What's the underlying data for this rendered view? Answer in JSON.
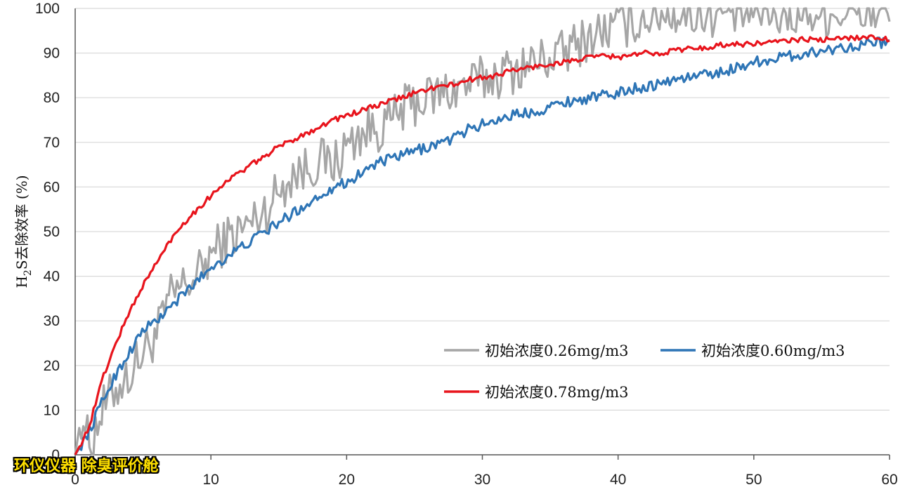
{
  "chart_data": {
    "type": "line",
    "title": "",
    "xlabel": "",
    "ylabel_main": "H",
    "ylabel_sub": "2",
    "ylabel_rest": "S去除效率 (%)",
    "xlim": [
      0,
      60
    ],
    "ylim": [
      0,
      100
    ],
    "x_ticks": [
      "0",
      "10",
      "20",
      "30",
      "40",
      "50",
      "60"
    ],
    "y_ticks": [
      "0",
      "10",
      "20",
      "30",
      "40",
      "50",
      "60",
      "70",
      "80",
      "90",
      "100"
    ],
    "grid": "horizontal",
    "legend_placement": "bottom-right",
    "series": [
      {
        "name": "初始浓度0.26mg/m3",
        "color": "#a6a6a6",
        "x": [
          0,
          0.5,
          1,
          2,
          3,
          4,
          5,
          6,
          7,
          8,
          9,
          10,
          11,
          12,
          13,
          14,
          15,
          16,
          17,
          18,
          19,
          20,
          21,
          22,
          23,
          24,
          25,
          26,
          27,
          28,
          29,
          30,
          31,
          32,
          33,
          34,
          35,
          36,
          37,
          38,
          39,
          40,
          41,
          42,
          43,
          44,
          45,
          46,
          47,
          48,
          49,
          50,
          51,
          52,
          53,
          54,
          55,
          56,
          57,
          58,
          59,
          60
        ],
        "y": [
          0,
          10,
          2,
          10,
          15,
          18,
          23,
          27,
          35,
          38,
          40,
          45,
          48,
          50,
          52,
          55,
          59,
          63,
          64,
          66,
          65,
          69,
          72,
          73,
          74,
          77,
          79,
          80,
          81,
          82,
          83,
          84,
          85,
          86,
          87,
          88,
          89,
          90,
          92,
          94,
          95,
          96,
          97,
          98,
          99,
          99,
          99,
          99,
          99,
          99,
          99,
          99,
          99,
          99,
          99,
          99,
          99,
          99,
          99,
          99,
          99,
          99
        ]
      },
      {
        "name": "初始浓度0.60mg/m3",
        "color": "#2e75b6",
        "x": [
          0,
          1,
          2,
          3,
          4,
          5,
          6,
          7,
          8,
          9,
          10,
          11,
          12,
          13,
          14,
          15,
          16,
          17,
          18,
          19,
          20,
          21,
          22,
          23,
          24,
          25,
          26,
          27,
          28,
          29,
          30,
          31,
          32,
          33,
          34,
          35,
          36,
          37,
          38,
          39,
          40,
          41,
          42,
          43,
          44,
          45,
          46,
          47,
          48,
          49,
          50,
          51,
          52,
          53,
          54,
          55,
          56,
          57,
          58,
          59,
          60
        ],
        "y": [
          0,
          5,
          12,
          18,
          23,
          28,
          30,
          33,
          36,
          39,
          42,
          44,
          46,
          48,
          50,
          52,
          54,
          56,
          58,
          60,
          61,
          63,
          65,
          66,
          67,
          68,
          69,
          70,
          71,
          73,
          74,
          75,
          76,
          76.5,
          77,
          78,
          79,
          79.5,
          80,
          80.5,
          81,
          82,
          82.5,
          83,
          84,
          84.5,
          85,
          85.5,
          86,
          87,
          88,
          88.5,
          89,
          89.5,
          90,
          90.5,
          91,
          91.5,
          92,
          92.5,
          92
        ]
      },
      {
        "name": "初始浓度0.78mg/m3",
        "color": "#e8141c",
        "x": [
          0,
          1,
          2,
          3,
          4,
          5,
          6,
          7,
          8,
          9,
          10,
          11,
          12,
          13,
          14,
          15,
          16,
          17,
          18,
          19,
          20,
          21,
          22,
          23,
          24,
          25,
          26,
          27,
          28,
          29,
          30,
          31,
          32,
          33,
          34,
          35,
          36,
          37,
          38,
          39,
          40,
          41,
          42,
          43,
          44,
          45,
          46,
          47,
          48,
          49,
          50,
          51,
          52,
          53,
          54,
          55,
          56,
          57,
          58,
          59,
          60
        ],
        "y": [
          0,
          6,
          17,
          25,
          32,
          38,
          43,
          48,
          52,
          55,
          58,
          61,
          63,
          65,
          67,
          69,
          70.5,
          72,
          73.5,
          75,
          76,
          77,
          78,
          79,
          80,
          81,
          82,
          82.5,
          83,
          84,
          84.5,
          85,
          86,
          86.5,
          87,
          87.5,
          88,
          88.5,
          89,
          89.5,
          89,
          89.5,
          90,
          90,
          90.5,
          91,
          91,
          91.5,
          92,
          92,
          92,
          92.5,
          92.5,
          93,
          93,
          93,
          93,
          93.5,
          93.5,
          93.5,
          93
        ]
      }
    ]
  },
  "watermark": "环仪仪器 除臭评价舱"
}
